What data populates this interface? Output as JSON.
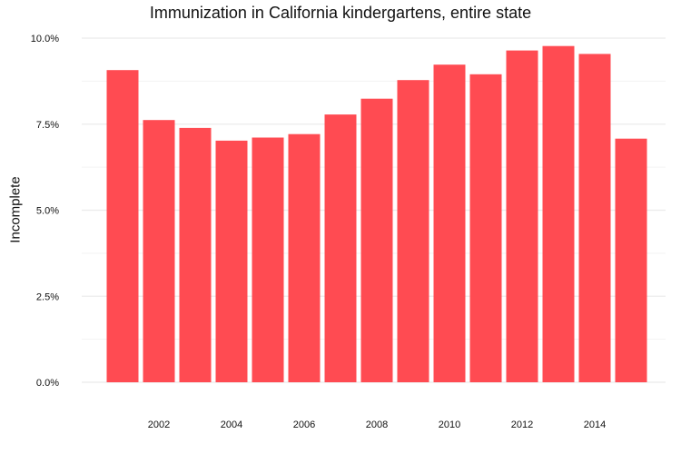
{
  "chart_data": {
    "type": "bar",
    "title": "Immunization in California kindergartens, entire state",
    "xlabel": "",
    "ylabel": "Incomplete",
    "x": [
      2001,
      2002,
      2003,
      2004,
      2005,
      2006,
      2007,
      2008,
      2009,
      2010,
      2011,
      2012,
      2013,
      2014,
      2015
    ],
    "values": [
      9.07,
      7.62,
      7.39,
      7.02,
      7.11,
      7.21,
      7.78,
      8.24,
      8.78,
      9.23,
      8.95,
      9.64,
      9.77,
      9.54,
      7.08
    ],
    "ylim": [
      0,
      10
    ],
    "yticks": [
      0,
      2.5,
      5,
      7.5,
      10
    ],
    "ytick_labels": [
      "0.0%",
      "2.5%",
      "5.0%",
      "7.5%",
      "10.0%"
    ],
    "xticks": [
      2002,
      2004,
      2006,
      2008,
      2010,
      2012,
      2014
    ],
    "xtick_labels": [
      "2002",
      "2004",
      "2006",
      "2008",
      "2010",
      "2012",
      "2014"
    ],
    "grid": true,
    "colors": {
      "bar": "#ff4b52",
      "grid": "#ebebeb",
      "text": "#111111"
    }
  }
}
